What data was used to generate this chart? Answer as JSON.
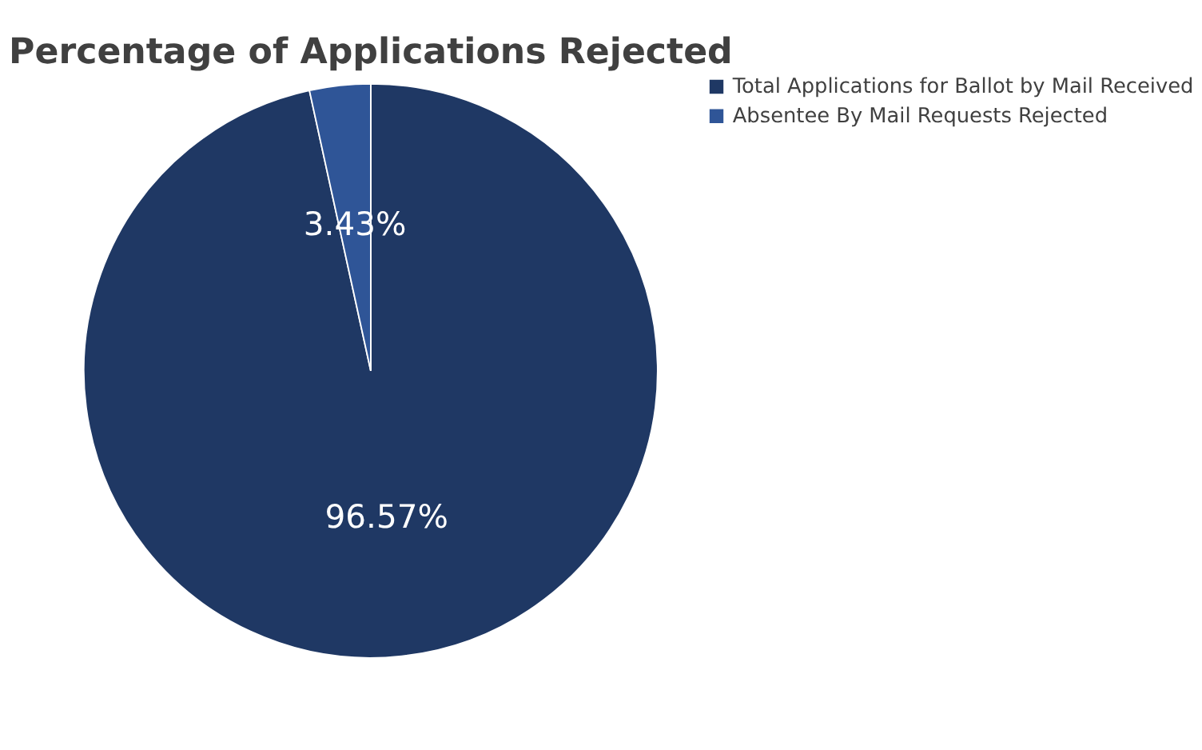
{
  "chart_data": {
    "type": "pie",
    "title": "Percentage of Applications Rejected",
    "categories": [
      "Total Applications for Ballot by Mail Received",
      "Absentee By Mail Requests Rejected"
    ],
    "values": [
      96.57,
      3.43
    ],
    "colors": [
      "#1f3864",
      "#2f5597"
    ],
    "value_labels": [
      "96.57%",
      "3.43%"
    ],
    "legend": "right"
  }
}
